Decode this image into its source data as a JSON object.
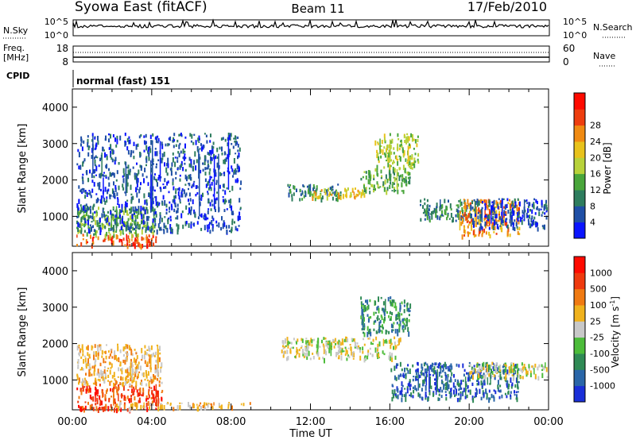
{
  "header": {
    "station": "Syowa East (fitACF)",
    "beam": "Beam 11",
    "date": "17/Feb/2010"
  },
  "status_panel": {
    "nsky_label": "N.Sky",
    "nsky_ticks": [
      "10^5",
      "10^0"
    ],
    "nsearch_label": "N.Search",
    "freq_label_1": "Freq.",
    "freq_label_2": "[MHz]",
    "freq_ticks": [
      "18",
      "8"
    ],
    "nave_label": "Nave",
    "nave_ticks": [
      "60",
      "0"
    ],
    "cpid_label": "CPID",
    "cpid_value": "normal (fast) 151"
  },
  "chart_data": [
    {
      "type": "heatmap",
      "parameter": "power",
      "xlabel": "",
      "ylabel": "Slant Range [km]",
      "xlim_hours": [
        0,
        24
      ],
      "ylim": [
        180,
        4500
      ],
      "y_ticks": [
        1000,
        2000,
        3000,
        4000
      ],
      "colorbar": {
        "label": "Power [dB]",
        "ticks": [
          "4",
          "8",
          "12",
          "16",
          "20",
          "24",
          "28"
        ],
        "colors": [
          "#0a14ff",
          "#1f4fa6",
          "#2e7d5e",
          "#49a63b",
          "#b8d23a",
          "#e8c21b",
          "#f08a12",
          "#ee3d0e",
          "#ff0a00"
        ]
      },
      "echo_regions": [
        {
          "x": [
            0.2,
            4.2
          ],
          "y": [
            220,
            520
          ],
          "level": 7
        },
        {
          "x": [
            0.2,
            4.2
          ],
          "y": [
            500,
            1300
          ],
          "level": 3
        },
        {
          "x": [
            0.2,
            8.5
          ],
          "y": [
            600,
            3300
          ],
          "level": 1
        },
        {
          "x": [
            10.8,
            13.5
          ],
          "y": [
            1500,
            1900
          ],
          "level": 2
        },
        {
          "x": [
            12.0,
            14.7
          ],
          "y": [
            1550,
            1800
          ],
          "level": 5
        },
        {
          "x": [
            14.5,
            17.0
          ],
          "y": [
            1700,
            2300
          ],
          "level": 3
        },
        {
          "x": [
            15.2,
            17.4
          ],
          "y": [
            2300,
            3300
          ],
          "level": 4
        },
        {
          "x": [
            17.5,
            20.0
          ],
          "y": [
            900,
            1500
          ],
          "level": 2
        },
        {
          "x": [
            19.5,
            22.5
          ],
          "y": [
            500,
            1500
          ],
          "level": 6
        },
        {
          "x": [
            20.0,
            23.9
          ],
          "y": [
            700,
            1500
          ],
          "level": 1
        }
      ]
    },
    {
      "type": "heatmap",
      "parameter": "velocity",
      "xlabel": "Time UT",
      "ylabel": "Slant Range [km]",
      "xlim_hours": [
        0,
        24
      ],
      "x_tick_labels": [
        "00:00",
        "04:00",
        "08:00",
        "12:00",
        "16:00",
        "20:00",
        "00:00"
      ],
      "ylim": [
        180,
        4500
      ],
      "y_ticks": [
        1000,
        2000,
        3000,
        4000
      ],
      "colorbar": {
        "label": "Velocity [m s",
        "label_sup": "-1",
        "label_end": "]",
        "ticks": [
          "1000",
          "500",
          "100",
          "25",
          "-25",
          "-100",
          "-500",
          "-1000"
        ],
        "colors": [
          "#1a2fd8",
          "#2a66a8",
          "#2f8a55",
          "#4cbc3a",
          "#c8c8c8",
          "#f0b21d",
          "#f07a12",
          "#ef3a0e",
          "#ff0a00"
        ]
      },
      "echo_regions": [
        {
          "x": [
            0.2,
            4.5
          ],
          "y": [
            220,
            900
          ],
          "level": 7
        },
        {
          "x": [
            0.2,
            4.5
          ],
          "y": [
            900,
            2000
          ],
          "level": 5
        },
        {
          "x": [
            2.0,
            9.0
          ],
          "y": [
            250,
            400
          ],
          "level": 5
        },
        {
          "x": [
            10.5,
            16.5
          ],
          "y": [
            1600,
            2200
          ],
          "level": 4
        },
        {
          "x": [
            14.5,
            17.0
          ],
          "y": [
            2300,
            3300
          ],
          "level": 2
        },
        {
          "x": [
            16.0,
            22.5
          ],
          "y": [
            500,
            1500
          ],
          "level": 1
        },
        {
          "x": [
            20.0,
            23.9
          ],
          "y": [
            1100,
            1500
          ],
          "level": 4
        }
      ]
    }
  ]
}
